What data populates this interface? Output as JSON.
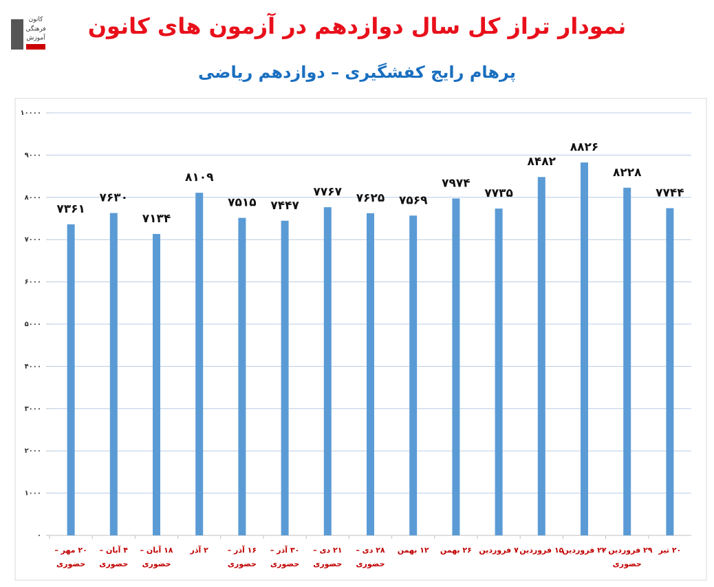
{
  "chart_data": {
    "type": "bar",
    "title": "نمودار تراز کل سال دوازدهم در آزمون های کانون",
    "subtitle": "پرهام رایج کفشگیری – دوازدهم ریاضی",
    "logo": [
      "کانون",
      "فرهنگی",
      "آموزش"
    ],
    "categories": [
      [
        "۲۰ مهر –",
        "حضوری"
      ],
      [
        "۴ آبان –",
        "حضوری"
      ],
      [
        "۱۸ آبان –",
        "حضوری"
      ],
      [
        "۲ آذر"
      ],
      [
        "۱۶ آذر –",
        "حضوری"
      ],
      [
        "۳۰ آذر –",
        "حضوری"
      ],
      [
        "۲۱ دی –",
        "حضوری"
      ],
      [
        "۲۸ دی –",
        "حضوری"
      ],
      [
        "۱۲ بهمن"
      ],
      [
        "۲۶ بهمن"
      ],
      [
        "۷ فروردین"
      ],
      [
        "۱۵ فروردین"
      ],
      [
        "۲۲ فروردین"
      ],
      [
        "۲۹ فروردین –",
        "حضوری"
      ],
      [
        "۲۰ تیر"
      ]
    ],
    "values": [
      7361,
      7630,
      7134,
      8109,
      7515,
      7447,
      7767,
      7625,
      7569,
      7974,
      7735,
      8482,
      8826,
      8228,
      7744
    ],
    "value_labels": [
      "۷۳۶۱",
      "۷۶۳۰",
      "۷۱۳۴",
      "۸۱۰۹",
      "۷۵۱۵",
      "۷۴۴۷",
      "۷۷۶۷",
      "۷۶۲۵",
      "۷۵۶۹",
      "۷۹۷۴",
      "۷۷۳۵",
      "۸۴۸۲",
      "۸۸۲۶",
      "۸۲۲۸",
      "۷۷۴۴"
    ],
    "color": "#5b9bd5",
    "ylim": [
      0,
      10000
    ],
    "yticks": [
      {
        "value": 0,
        "label": "۰"
      },
      {
        "value": 1000,
        "label": "۱۰۰۰"
      },
      {
        "value": 2000,
        "label": "۲۰۰۰"
      },
      {
        "value": 3000,
        "label": "۳۰۰۰"
      },
      {
        "value": 4000,
        "label": "۴۰۰۰"
      },
      {
        "value": 5000,
        "label": "۵۰۰۰"
      },
      {
        "value": 6000,
        "label": "۶۰۰۰"
      },
      {
        "value": 7000,
        "label": "۷۰۰۰"
      },
      {
        "value": 8000,
        "label": "۸۰۰۰"
      },
      {
        "value": 9000,
        "label": "۹۰۰۰"
      },
      {
        "value": 10000,
        "label": "۱۰۰۰۰"
      }
    ],
    "grid": true
  }
}
